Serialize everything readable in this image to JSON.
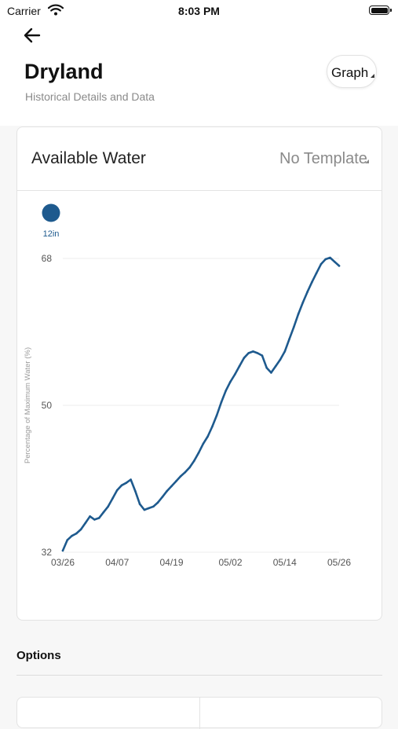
{
  "status_bar": {
    "carrier": "Carrier",
    "time": "8:03 PM"
  },
  "header": {
    "title": "Dryland",
    "subtitle": "Historical Details and Data",
    "view_toggle_label": "Graph"
  },
  "card": {
    "title": "Available Water",
    "template_select_value": "No Template"
  },
  "chart_data": {
    "type": "line",
    "legend": [
      {
        "label": "12in",
        "color": "#1e5a8e"
      }
    ],
    "series": [
      {
        "name": "12in",
        "color": "#1e5a8e",
        "x": [
          "03/26",
          "03/27",
          "03/28",
          "03/29",
          "03/30",
          "03/31",
          "04/01",
          "04/02",
          "04/03",
          "04/04",
          "04/05",
          "04/06",
          "04/07",
          "04/08",
          "04/09",
          "04/10",
          "04/11",
          "04/12",
          "04/13",
          "04/14",
          "04/15",
          "04/16",
          "04/17",
          "04/18",
          "04/19",
          "04/20",
          "04/21",
          "04/22",
          "04/23",
          "04/24",
          "04/25",
          "04/26",
          "04/27",
          "04/28",
          "04/29",
          "04/30",
          "05/01",
          "05/02",
          "05/03",
          "05/04",
          "05/05",
          "05/06",
          "05/07",
          "05/08",
          "05/09",
          "05/10",
          "05/11",
          "05/12",
          "05/13",
          "05/14",
          "05/15",
          "05/16",
          "05/17",
          "05/18",
          "05/19",
          "05/20",
          "05/21",
          "05/22",
          "05/23",
          "05/24",
          "05/25",
          "05/26"
        ],
        "y": [
          32.2,
          33.5,
          34.0,
          34.3,
          34.8,
          35.6,
          36.4,
          36.0,
          36.2,
          36.9,
          37.6,
          38.6,
          39.6,
          40.2,
          40.5,
          40.9,
          39.5,
          37.9,
          37.2,
          37.4,
          37.6,
          38.1,
          38.8,
          39.5,
          40.1,
          40.7,
          41.3,
          41.8,
          42.4,
          43.2,
          44.2,
          45.3,
          46.2,
          47.4,
          48.8,
          50.4,
          51.8,
          52.9,
          53.8,
          54.8,
          55.8,
          56.4,
          56.6,
          56.4,
          56.1,
          54.6,
          54.0,
          54.8,
          55.6,
          56.6,
          58.1,
          59.6,
          61.2,
          62.6,
          63.9,
          65.1,
          66.2,
          67.3,
          67.9,
          68.1,
          67.6,
          67.1
        ]
      }
    ],
    "y_ticks": [
      32,
      50,
      68
    ],
    "x_ticks": [
      "03/26",
      "04/07",
      "04/19",
      "05/02",
      "05/14",
      "05/26"
    ],
    "ylabel": "Percentage of Maximum Water (%)",
    "ylim": [
      32,
      68
    ],
    "grid": "horizontal"
  },
  "options": {
    "title": "Options"
  }
}
